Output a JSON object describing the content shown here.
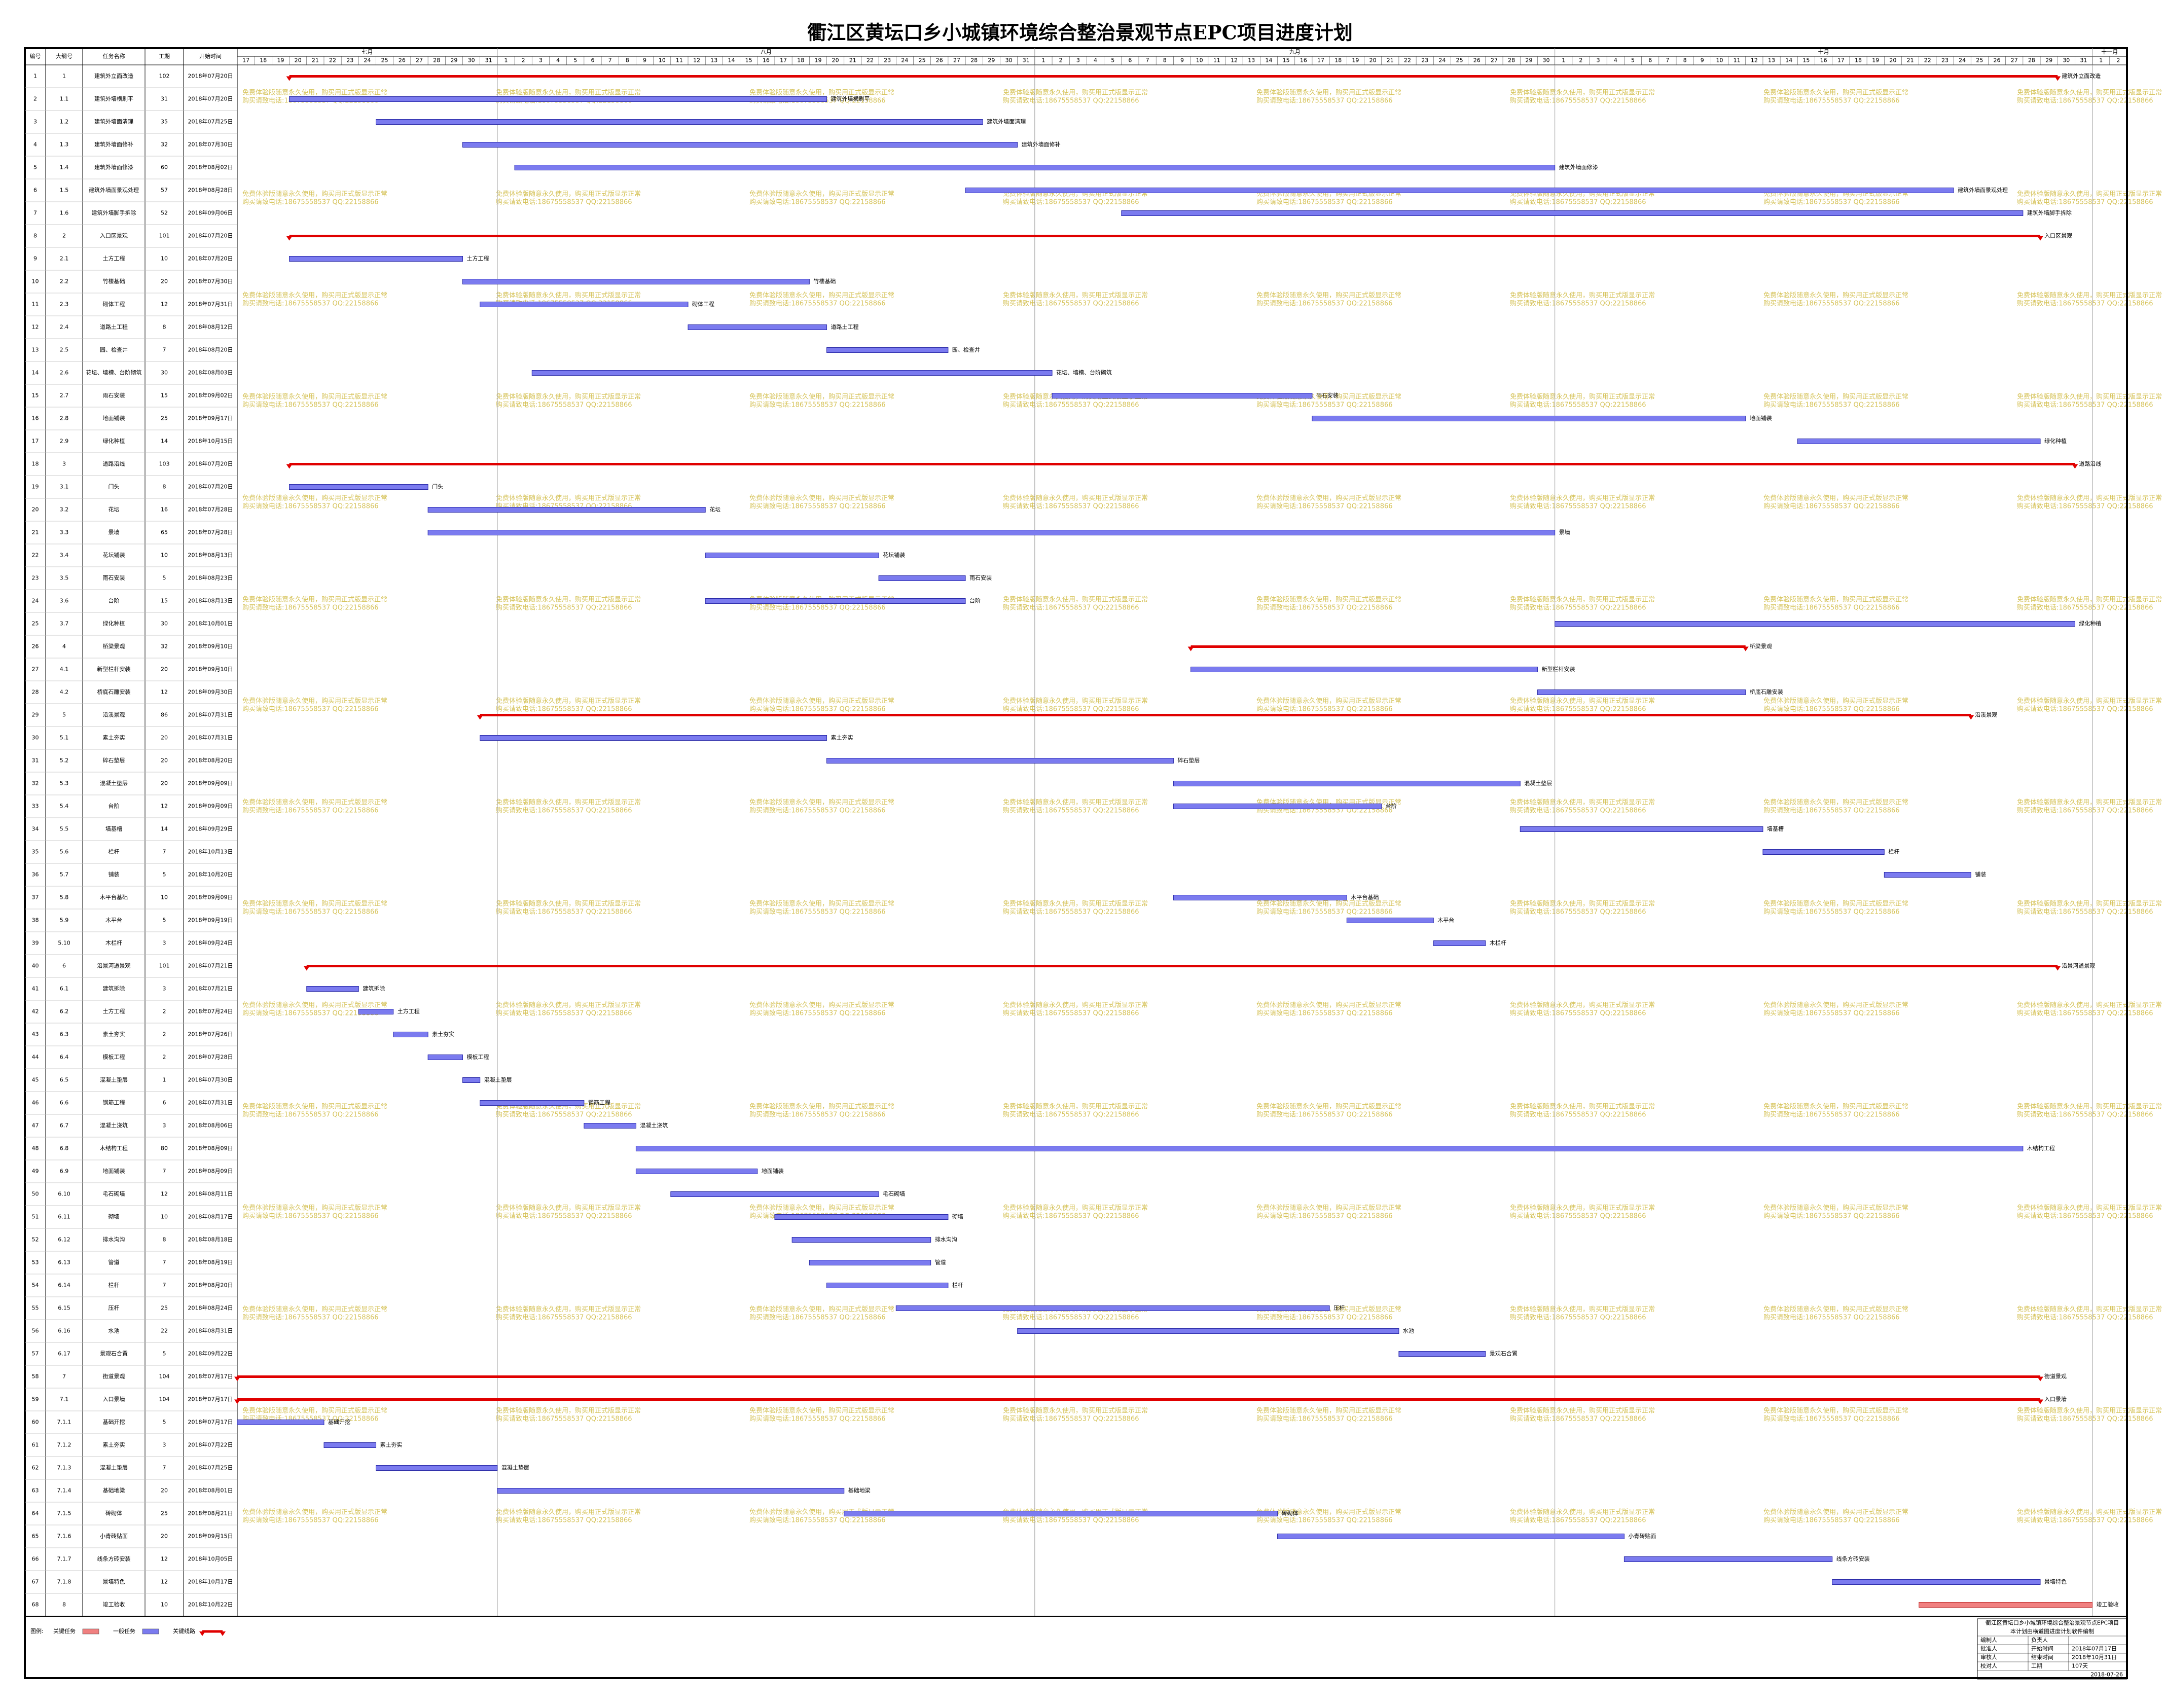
{
  "title": "衢江区黄坛口乡小城镇环境综合整治景观节点EPC项目进度计划",
  "columns": [
    "编号",
    "大纲号",
    "任务名称",
    "工期",
    "开始时间"
  ],
  "timeline": {
    "months": [
      {
        "name": "七月",
        "days": [
          17,
          18,
          19,
          20,
          21,
          22,
          23,
          24,
          25,
          26,
          27,
          28,
          29,
          30,
          31
        ]
      },
      {
        "name": "八月",
        "days": [
          1,
          2,
          3,
          4,
          5,
          6,
          7,
          8,
          9,
          10,
          11,
          12,
          13,
          14,
          15,
          16,
          17,
          18,
          19,
          20,
          21,
          22,
          23,
          24,
          25,
          26,
          27,
          28,
          29,
          30,
          31
        ]
      },
      {
        "name": "九月",
        "days": [
          1,
          2,
          3,
          4,
          5,
          6,
          7,
          8,
          9,
          10,
          11,
          12,
          13,
          14,
          15,
          16,
          17,
          18,
          19,
          20,
          21,
          22,
          23,
          24,
          25,
          26,
          27,
          28,
          29,
          30
        ]
      },
      {
        "name": "十月",
        "days": [
          1,
          2,
          3,
          4,
          5,
          6,
          7,
          8,
          9,
          10,
          11,
          12,
          13,
          14,
          15,
          16,
          17,
          18,
          19,
          20,
          21,
          22,
          23,
          24,
          25,
          26,
          27,
          28,
          29,
          30,
          31
        ]
      },
      {
        "name": "十一月",
        "days": [
          1,
          2
        ]
      }
    ]
  },
  "colors": {
    "normal": "#7b7bef",
    "critical": "#f08080",
    "summary": "#e00000"
  },
  "rows": [
    {
      "id": 1,
      "wbs": "1",
      "name": "建筑外立面改造",
      "duration": 102,
      "start": "2018年07月20日",
      "kind": "summary"
    },
    {
      "id": 2,
      "wbs": "1.1",
      "name": "建筑外墙横刷平",
      "duration": 31,
      "start": "2018年07月20日",
      "kind": "normal"
    },
    {
      "id": 3,
      "wbs": "1.2",
      "name": "建筑外墙面清理",
      "duration": 35,
      "start": "2018年07月25日",
      "kind": "normal"
    },
    {
      "id": 4,
      "wbs": "1.3",
      "name": "建筑外墙面修补",
      "duration": 32,
      "start": "2018年07月30日",
      "kind": "normal"
    },
    {
      "id": 5,
      "wbs": "1.4",
      "name": "建筑外墙面修漆",
      "duration": 60,
      "start": "2018年08月02日",
      "kind": "normal"
    },
    {
      "id": 6,
      "wbs": "1.5",
      "name": "建筑外墙面景观处理",
      "duration": 57,
      "start": "2018年08月28日",
      "kind": "normal"
    },
    {
      "id": 7,
      "wbs": "1.6",
      "name": "建筑外墙脚手拆除",
      "duration": 52,
      "start": "2018年09月06日",
      "kind": "normal"
    },
    {
      "id": 8,
      "wbs": "2",
      "name": "入口区景观",
      "duration": 101,
      "start": "2018年07月20日",
      "kind": "summary"
    },
    {
      "id": 9,
      "wbs": "2.1",
      "name": "土方工程",
      "duration": 10,
      "start": "2018年07月20日",
      "kind": "normal"
    },
    {
      "id": 10,
      "wbs": "2.2",
      "name": "竹楼基础",
      "duration": 20,
      "start": "2018年07月30日",
      "kind": "normal"
    },
    {
      "id": 11,
      "wbs": "2.3",
      "name": "砌体工程",
      "duration": 12,
      "start": "2018年07月31日",
      "kind": "normal"
    },
    {
      "id": 12,
      "wbs": "2.4",
      "name": "道路土工程",
      "duration": 8,
      "start": "2018年08月12日",
      "kind": "normal"
    },
    {
      "id": 13,
      "wbs": "2.5",
      "name": "园、检查井",
      "duration": 7,
      "start": "2018年08月20日",
      "kind": "normal"
    },
    {
      "id": 14,
      "wbs": "2.6",
      "name": "花坛、墙槽、台阶砌筑",
      "duration": 30,
      "start": "2018年08月03日",
      "kind": "normal"
    },
    {
      "id": 15,
      "wbs": "2.7",
      "name": "雨石安装",
      "duration": 15,
      "start": "2018年09月02日",
      "kind": "normal"
    },
    {
      "id": 16,
      "wbs": "2.8",
      "name": "地面铺装",
      "duration": 25,
      "start": "2018年09月17日",
      "kind": "normal"
    },
    {
      "id": 17,
      "wbs": "2.9",
      "name": "绿化种植",
      "duration": 14,
      "start": "2018年10月15日",
      "kind": "normal"
    },
    {
      "id": 18,
      "wbs": "3",
      "name": "道路沿线",
      "duration": 103,
      "start": "2018年07月20日",
      "kind": "summary"
    },
    {
      "id": 19,
      "wbs": "3.1",
      "name": "门头",
      "duration": 8,
      "start": "2018年07月20日",
      "kind": "normal"
    },
    {
      "id": 20,
      "wbs": "3.2",
      "name": "花坛",
      "duration": 16,
      "start": "2018年07月28日",
      "kind": "normal"
    },
    {
      "id": 21,
      "wbs": "3.3",
      "name": "景墙",
      "duration": 65,
      "start": "2018年07月28日",
      "kind": "normal"
    },
    {
      "id": 22,
      "wbs": "3.4",
      "name": "花坛铺装",
      "duration": 10,
      "start": "2018年08月13日",
      "kind": "normal"
    },
    {
      "id": 23,
      "wbs": "3.5",
      "name": "雨石安装",
      "duration": 5,
      "start": "2018年08月23日",
      "kind": "normal"
    },
    {
      "id": 24,
      "wbs": "3.6",
      "name": "台阶",
      "duration": 15,
      "start": "2018年08月13日",
      "kind": "normal"
    },
    {
      "id": 25,
      "wbs": "3.7",
      "name": "绿化种植",
      "duration": 30,
      "start": "2018年10月01日",
      "kind": "normal"
    },
    {
      "id": 26,
      "wbs": "4",
      "name": "桥梁景观",
      "duration": 32,
      "start": "2018年09月10日",
      "kind": "summary"
    },
    {
      "id": 27,
      "wbs": "4.1",
      "name": "新型栏杆安装",
      "duration": 20,
      "start": "2018年09月10日",
      "kind": "normal"
    },
    {
      "id": 28,
      "wbs": "4.2",
      "name": "桥底石雕安装",
      "duration": 12,
      "start": "2018年09月30日",
      "kind": "normal"
    },
    {
      "id": 29,
      "wbs": "5",
      "name": "沿溪景观",
      "duration": 86,
      "start": "2018年07月31日",
      "kind": "summary"
    },
    {
      "id": 30,
      "wbs": "5.1",
      "name": "素土夯实",
      "duration": 20,
      "start": "2018年07月31日",
      "kind": "normal"
    },
    {
      "id": 31,
      "wbs": "5.2",
      "name": "碎石垫层",
      "duration": 20,
      "start": "2018年08月20日",
      "kind": "normal"
    },
    {
      "id": 32,
      "wbs": "5.3",
      "name": "混凝土垫层",
      "duration": 20,
      "start": "2018年09月09日",
      "kind": "normal"
    },
    {
      "id": 33,
      "wbs": "5.4",
      "name": "台阶",
      "duration": 12,
      "start": "2018年09月09日",
      "kind": "normal"
    },
    {
      "id": 34,
      "wbs": "5.5",
      "name": "墙基槽",
      "duration": 14,
      "start": "2018年09月29日",
      "kind": "normal"
    },
    {
      "id": 35,
      "wbs": "5.6",
      "name": "栏杆",
      "duration": 7,
      "start": "2018年10月13日",
      "kind": "normal"
    },
    {
      "id": 36,
      "wbs": "5.7",
      "name": "铺装",
      "duration": 5,
      "start": "2018年10月20日",
      "kind": "normal"
    },
    {
      "id": 37,
      "wbs": "5.8",
      "name": "木平台基础",
      "duration": 10,
      "start": "2018年09月09日",
      "kind": "normal"
    },
    {
      "id": 38,
      "wbs": "5.9",
      "name": "木平台",
      "duration": 5,
      "start": "2018年09月19日",
      "kind": "normal"
    },
    {
      "id": 39,
      "wbs": "5.10",
      "name": "木栏杆",
      "duration": 3,
      "start": "2018年09月24日",
      "kind": "normal"
    },
    {
      "id": 40,
      "wbs": "6",
      "name": "沿景河道景观",
      "duration": 101,
      "start": "2018年07月21日",
      "kind": "summary"
    },
    {
      "id": 41,
      "wbs": "6.1",
      "name": "建筑拆除",
      "duration": 3,
      "start": "2018年07月21日",
      "kind": "normal"
    },
    {
      "id": 42,
      "wbs": "6.2",
      "name": "土方工程",
      "duration": 2,
      "start": "2018年07月24日",
      "kind": "normal"
    },
    {
      "id": 43,
      "wbs": "6.3",
      "name": "素土夯实",
      "duration": 2,
      "start": "2018年07月26日",
      "kind": "normal"
    },
    {
      "id": 44,
      "wbs": "6.4",
      "name": "模板工程",
      "duration": 2,
      "start": "2018年07月28日",
      "kind": "normal"
    },
    {
      "id": 45,
      "wbs": "6.5",
      "name": "混凝土垫层",
      "duration": 1,
      "start": "2018年07月30日",
      "kind": "normal"
    },
    {
      "id": 46,
      "wbs": "6.6",
      "name": "钢筋工程",
      "duration": 6,
      "start": "2018年07月31日",
      "kind": "normal"
    },
    {
      "id": 47,
      "wbs": "6.7",
      "name": "混凝土浇筑",
      "duration": 3,
      "start": "2018年08月06日",
      "kind": "normal"
    },
    {
      "id": 48,
      "wbs": "6.8",
      "name": "木结构工程",
      "duration": 80,
      "start": "2018年08月09日",
      "kind": "normal"
    },
    {
      "id": 49,
      "wbs": "6.9",
      "name": "地面铺装",
      "duration": 7,
      "start": "2018年08月09日",
      "kind": "normal"
    },
    {
      "id": 50,
      "wbs": "6.10",
      "name": "毛石砌墙",
      "duration": 12,
      "start": "2018年08月11日",
      "kind": "normal"
    },
    {
      "id": 51,
      "wbs": "6.11",
      "name": "砌墙",
      "duration": 10,
      "start": "2018年08月17日",
      "kind": "normal"
    },
    {
      "id": 52,
      "wbs": "6.12",
      "name": "排水沟沟",
      "duration": 8,
      "start": "2018年08月18日",
      "kind": "normal"
    },
    {
      "id": 53,
      "wbs": "6.13",
      "name": "管道",
      "duration": 7,
      "start": "2018年08月19日",
      "kind": "normal"
    },
    {
      "id": 54,
      "wbs": "6.14",
      "name": "栏杆",
      "duration": 7,
      "start": "2018年08月20日",
      "kind": "normal"
    },
    {
      "id": 55,
      "wbs": "6.15",
      "name": "压杆",
      "duration": 25,
      "start": "2018年08月24日",
      "kind": "normal"
    },
    {
      "id": 56,
      "wbs": "6.16",
      "name": "水池",
      "duration": 22,
      "start": "2018年08月31日",
      "kind": "normal"
    },
    {
      "id": 57,
      "wbs": "6.17",
      "name": "景观石合置",
      "duration": 5,
      "start": "2018年09月22日",
      "kind": "normal"
    },
    {
      "id": 58,
      "wbs": "7",
      "name": "街道景观",
      "duration": 104,
      "start": "2018年07月17日",
      "kind": "summary"
    },
    {
      "id": 59,
      "wbs": "7.1",
      "name": "入口景墙",
      "duration": 104,
      "start": "2018年07月17日",
      "kind": "summary"
    },
    {
      "id": 60,
      "wbs": "7.1.1",
      "name": "基础开挖",
      "duration": 5,
      "start": "2018年07月17日",
      "kind": "normal"
    },
    {
      "id": 61,
      "wbs": "7.1.2",
      "name": "素土夯实",
      "duration": 3,
      "start": "2018年07月22日",
      "kind": "normal"
    },
    {
      "id": 62,
      "wbs": "7.1.3",
      "name": "混凝土垫层",
      "duration": 7,
      "start": "2018年07月25日",
      "kind": "normal"
    },
    {
      "id": 63,
      "wbs": "7.1.4",
      "name": "基础地梁",
      "duration": 20,
      "start": "2018年08月01日",
      "kind": "normal"
    },
    {
      "id": 64,
      "wbs": "7.1.5",
      "name": "砖砌体",
      "duration": 25,
      "start": "2018年08月21日",
      "kind": "normal"
    },
    {
      "id": 65,
      "wbs": "7.1.6",
      "name": "小青砖贴面",
      "duration": 20,
      "start": "2018年09月15日",
      "kind": "normal"
    },
    {
      "id": 66,
      "wbs": "7.1.7",
      "name": "线条方砖安装",
      "duration": 12,
      "start": "2018年10月05日",
      "kind": "normal"
    },
    {
      "id": 67,
      "wbs": "7.1.8",
      "name": "景墙特色",
      "duration": 12,
      "start": "2018年10月17日",
      "kind": "normal"
    },
    {
      "id": 68,
      "wbs": "8",
      "name": "竣工验收",
      "duration": 10,
      "start": "2018年10月22日",
      "kind": "critical"
    }
  ],
  "legend": {
    "title": "图例:",
    "items": [
      {
        "label": "关键任务",
        "kind": "critical"
      },
      {
        "label": "一般任务",
        "kind": "normal"
      },
      {
        "label": "关键线路",
        "kind": "summary"
      }
    ]
  },
  "info": {
    "project": "衢江区黄坛口乡小城镇环境综合整治景观节点EPC项目",
    "note": "本计划由横道图进度计划软件编制",
    "rows": [
      [
        "编制人",
        "负责人"
      ],
      [
        "批准人",
        "开始时间",
        "2018年07月17日"
      ],
      [
        "审核人",
        "结束时间",
        "2018年10月31日"
      ],
      [
        "校对人",
        "工期",
        "107天"
      ]
    ],
    "date": "2018-07-26"
  },
  "watermark": [
    "免费体验版随意永久使用，购买用正式版显示正常",
    "购买请致电话:18675558537 QQ:22158866"
  ]
}
